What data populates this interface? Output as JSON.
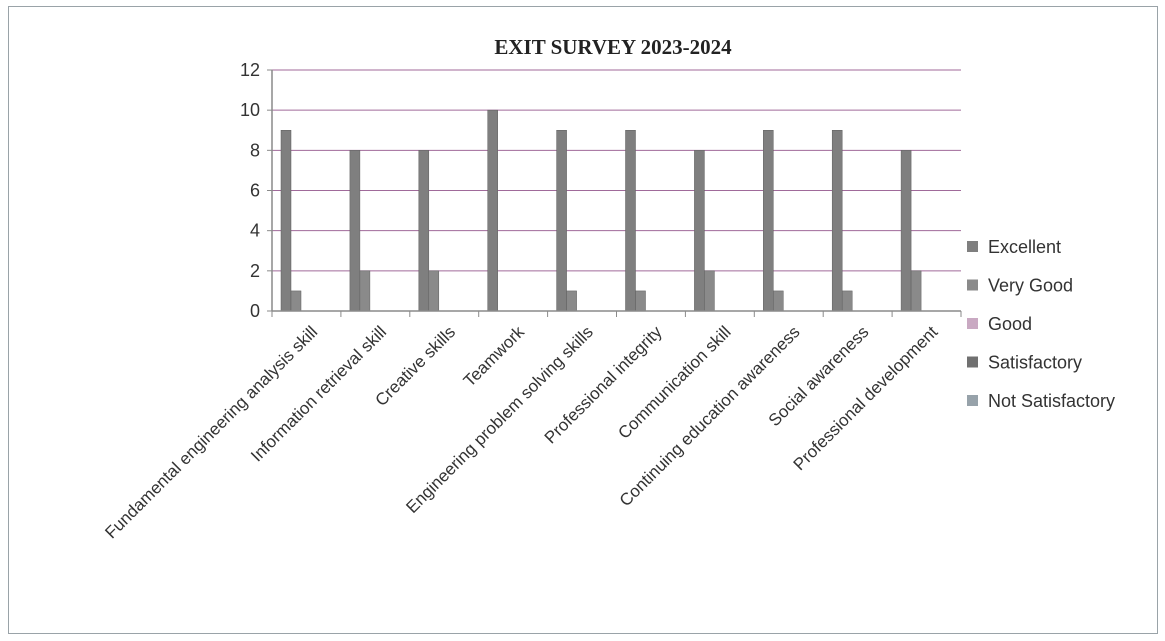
{
  "chart_data": {
    "type": "bar",
    "title": "EXIT SURVEY 2023-2024",
    "xlabel": "",
    "ylabel": "",
    "ylim": [
      0,
      12
    ],
    "yticks": [
      0,
      2,
      4,
      6,
      8,
      10,
      12
    ],
    "grid": true,
    "legend": "right",
    "categories": [
      "Fundamental engineering analysis skill",
      "Information retrieval skill",
      "Creative skills",
      "Teamwork",
      "Engineering problem solving skills",
      "Professional integrity",
      "Communication skill",
      "Continuing education awareness",
      "Social awareness",
      "Professional development"
    ],
    "series": [
      {
        "name": "Excellent",
        "color": "#7f7f7f",
        "values": [
          9,
          8,
          8,
          10,
          9,
          9,
          8,
          9,
          9,
          8
        ]
      },
      {
        "name": "Very Good",
        "color": "#8a8a8a",
        "values": [
          1,
          2,
          2,
          0,
          1,
          1,
          2,
          1,
          1,
          2
        ]
      },
      {
        "name": "Good",
        "color": "#c9a9c2",
        "values": [
          0,
          0,
          0,
          0,
          0,
          0,
          0,
          0,
          0,
          0
        ]
      },
      {
        "name": "Satisfactory",
        "color": "#707070",
        "values": [
          0,
          0,
          0,
          0,
          0,
          0,
          0,
          0,
          0,
          0
        ]
      },
      {
        "name": "Not Satisfactory",
        "color": "#97a2aa",
        "values": [
          0,
          0,
          0,
          0,
          0,
          0,
          0,
          0,
          0,
          0
        ]
      }
    ],
    "colors": {
      "gridline": "#a06a9a",
      "axis": "#8a8a8a"
    }
  }
}
